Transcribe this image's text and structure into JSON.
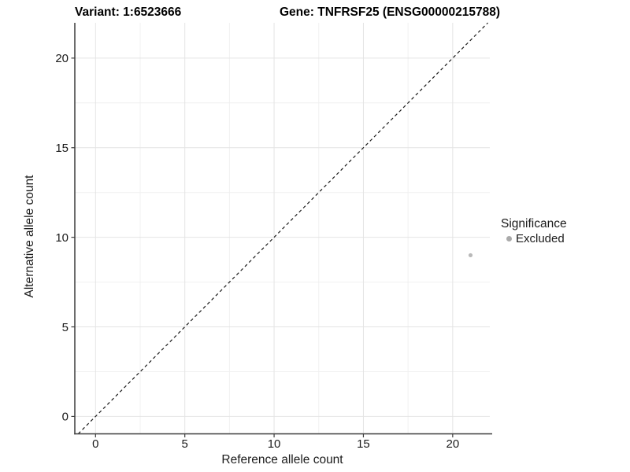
{
  "title": {
    "variant": "Variant: 1:6523666",
    "gene": "Gene: TNFRSF25 (ENSG00000215788)"
  },
  "chart_data": {
    "type": "scatter",
    "title_left": "Variant: 1:6523666",
    "title_right": "Gene: TNFRSF25 (ENSG00000215788)",
    "xlabel": "Reference allele count",
    "ylabel": "Alternative allele count",
    "xlim": [
      -1.16,
      22.08
    ],
    "ylim": [
      -0.97,
      21.97
    ],
    "x_major_ticks": [
      0,
      5,
      10,
      15,
      20
    ],
    "x_minor_ticks": [
      2.5,
      7.5,
      12.5,
      17.5
    ],
    "y_major_ticks": [
      0,
      5,
      10,
      15,
      20
    ],
    "y_minor_ticks": [
      2.5,
      7.5,
      12.5,
      17.5
    ],
    "grid": true,
    "identity_line": {
      "shown": true,
      "style": "dashed",
      "color": "#1a1a1a"
    },
    "series": [
      {
        "name": "Excluded",
        "color": "#b9b9b9",
        "points": [
          {
            "x": 21,
            "y": 9
          }
        ]
      }
    ],
    "legend": {
      "title": "Significance",
      "position": "right",
      "items": [
        {
          "label": "Excluded",
          "color": "#aaaaaa"
        }
      ]
    },
    "colors": {
      "grid_major": "#e4e4e4",
      "grid_minor": "#f0f0f0",
      "axis_line": "#3c3c3c",
      "tick_text": "#1a1a1a",
      "background": "#ffffff"
    }
  }
}
